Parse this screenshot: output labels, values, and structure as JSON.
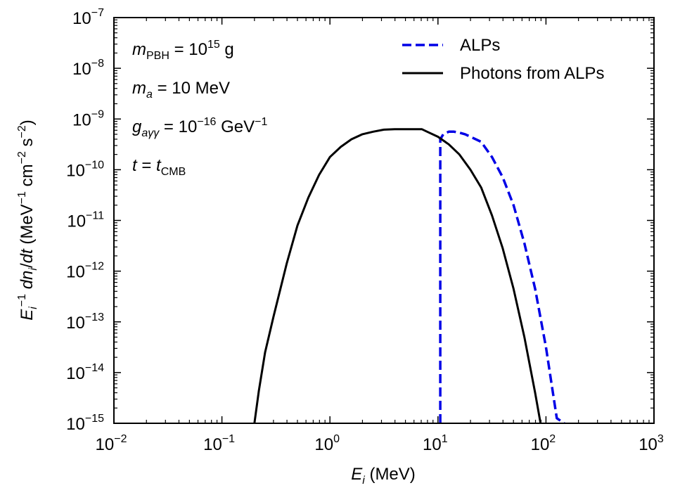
{
  "chart_data": {
    "type": "line",
    "xscale": "log",
    "yscale": "log",
    "xlim": [
      0.01,
      1000
    ],
    "ylim": [
      1e-15,
      1e-07
    ],
    "xlabel": {
      "main": "E",
      "sub": "i",
      "unit": " (MeV)"
    },
    "ylabel": "E_i^{-1} dn_i/dt (MeV^{-1} cm^{-2} s^{-2})",
    "x_ticks": [
      {
        "value": 0.01,
        "base": "10",
        "exp": "−2"
      },
      {
        "value": 0.1,
        "base": "10",
        "exp": "−1"
      },
      {
        "value": 1,
        "base": "10",
        "exp": "0"
      },
      {
        "value": 10,
        "base": "10",
        "exp": "1"
      },
      {
        "value": 100,
        "base": "10",
        "exp": "2"
      },
      {
        "value": 1000,
        "base": "10",
        "exp": "3"
      }
    ],
    "y_ticks": [
      {
        "value": 1e-15,
        "base": "10",
        "exp": "−15"
      },
      {
        "value": 1e-14,
        "base": "10",
        "exp": "−14"
      },
      {
        "value": 1e-13,
        "base": "10",
        "exp": "−13"
      },
      {
        "value": 1e-12,
        "base": "10",
        "exp": "−12"
      },
      {
        "value": 1e-11,
        "base": "10",
        "exp": "−11"
      },
      {
        "value": 1e-10,
        "base": "10",
        "exp": "−10"
      },
      {
        "value": 1e-09,
        "base": "10",
        "exp": "−9"
      },
      {
        "value": 1e-08,
        "base": "10",
        "exp": "−8"
      },
      {
        "value": 1e-07,
        "base": "10",
        "exp": "−7"
      }
    ],
    "annotations": {
      "mass_line": "m_PBH = 10^15 g",
      "alp_mass_line": "m_a = 10 MeV",
      "coupling_line": "g_aγγ = 10^−16 GeV^−1",
      "time_line": "t = t_CMB"
    },
    "legend": {
      "placement": "top-right",
      "entries": [
        {
          "label": "ALPs",
          "style": "dashed",
          "color": "#0000e6"
        },
        {
          "label": "Photons from ALPs",
          "style": "solid",
          "color": "#000000"
        }
      ]
    },
    "series": [
      {
        "name": "ALPs",
        "color": "#0000e6",
        "style": "dashed",
        "points": [
          [
            10.5,
            1e-15
          ],
          [
            10.5,
            3.98e-10
          ],
          [
            11.2,
            5.01e-10
          ],
          [
            12.6,
            5.62e-10
          ],
          [
            14.1,
            5.62e-10
          ],
          [
            15.8,
            5.37e-10
          ],
          [
            17.8,
            5.01e-10
          ],
          [
            20,
            4.47e-10
          ],
          [
            25.1,
            3.55e-10
          ],
          [
            31.6,
            1.78e-10
          ],
          [
            39.8,
            7.08e-11
          ],
          [
            50.1,
            2e-11
          ],
          [
            63.1,
            3.55e-12
          ],
          [
            79.4,
            4.47e-13
          ],
          [
            100,
            3.16e-14
          ],
          [
            126,
            1.26e-15
          ],
          [
            148,
            1e-15
          ]
        ]
      },
      {
        "name": "Photons from ALPs",
        "color": "#000000",
        "style": "solid",
        "points": [
          [
            0.2,
            1e-15
          ],
          [
            0.22,
            4.47e-15
          ],
          [
            0.251,
            2.51e-14
          ],
          [
            0.3,
            1.26e-13
          ],
          [
            0.398,
            1.41e-12
          ],
          [
            0.5,
            7.94e-12
          ],
          [
            0.631,
            2.82e-11
          ],
          [
            0.794,
            7.94e-11
          ],
          [
            1,
            1.78e-10
          ],
          [
            1.26,
            2.82e-10
          ],
          [
            1.58,
            3.98e-10
          ],
          [
            2,
            5.01e-10
          ],
          [
            2.51,
            5.62e-10
          ],
          [
            3.16,
            6.17e-10
          ],
          [
            3.98,
            6.31e-10
          ],
          [
            5.01,
            6.31e-10
          ],
          [
            6.31,
            6.31e-10
          ],
          [
            7.08,
            6.31e-10
          ],
          [
            7.94,
            5.62e-10
          ],
          [
            10,
            4.47e-10
          ],
          [
            12.6,
            3.16e-10
          ],
          [
            15.8,
            2e-10
          ],
          [
            20,
            1e-10
          ],
          [
            25.1,
            4.47e-11
          ],
          [
            31.6,
            1.26e-11
          ],
          [
            39.8,
            2.82e-12
          ],
          [
            50.1,
            4.47e-13
          ],
          [
            63.1,
            5.01e-14
          ],
          [
            79.4,
            3.98e-15
          ],
          [
            89.1,
            1e-15
          ]
        ]
      }
    ]
  }
}
